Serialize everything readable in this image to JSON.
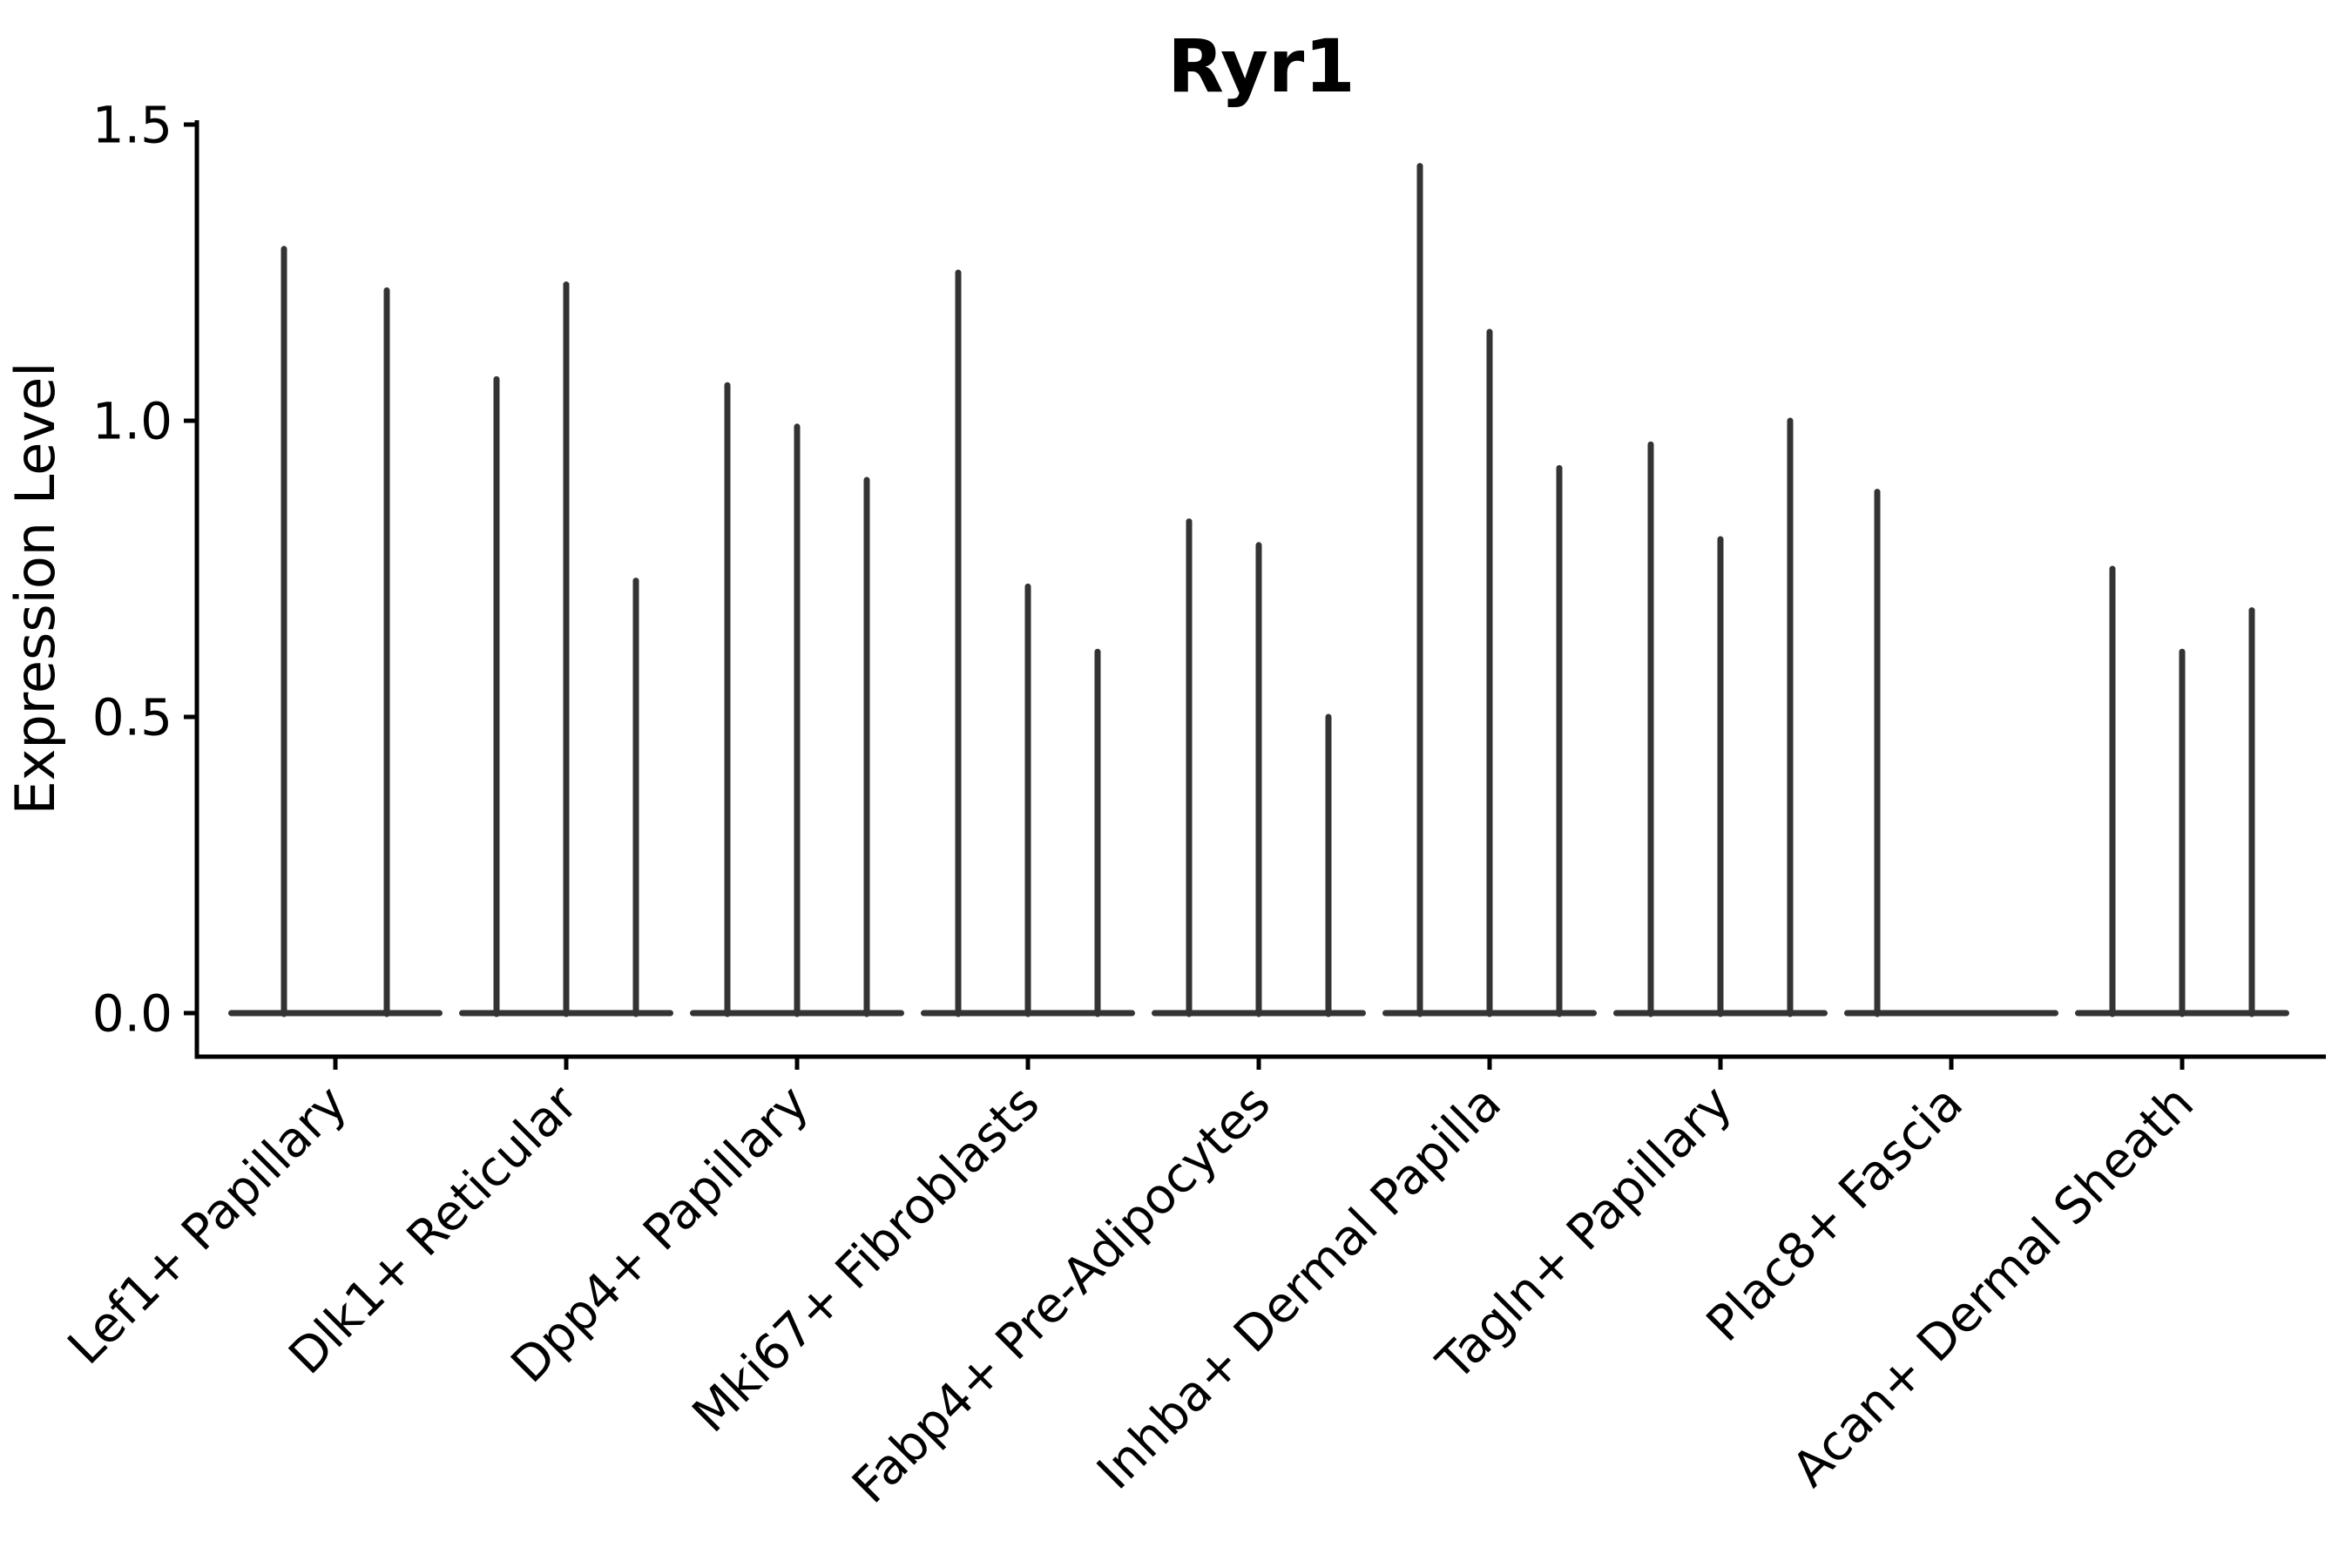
{
  "title": "Ryr1",
  "colors": {
    "violin": "#333333",
    "axis": "#000000",
    "text": "#000000",
    "background": "#ffffff"
  },
  "chart_data": {
    "type": "violin",
    "title": "Ryr1",
    "xlabel": "",
    "ylabel": "Expression Level",
    "ylim": [
      0,
      1.5
    ],
    "yticks": [
      0.0,
      0.5,
      1.0,
      1.5
    ],
    "ytick_labels": [
      "0.0",
      "0.5",
      "1.0",
      "1.5"
    ],
    "grid": false,
    "legend": "none",
    "xtick_rotation_deg": 45,
    "description": "Needle-thin violin plot of Ryr1 expression; each cell-type category holds 2-3 sparse violins (wide flat base at 0 with a thin spike to the max expression value).",
    "categories": [
      "Lef1+ Papillary",
      "Dlk1+ Reticular",
      "Dpp4+ Papillary",
      "Mki67+ Fibroblasts",
      "Fabp4+ Pre-Adipocytes",
      "Inhba+ Dermal Papilla",
      "Tagln+ Papillary",
      "Plac8+ Fascia",
      "Acan+ Dermal Sheath"
    ],
    "groups": [
      {
        "category": "Lef1+ Papillary",
        "violins": [
          {
            "offset": -59,
            "max": 1.29
          },
          {
            "offset": 59,
            "max": 1.22
          }
        ]
      },
      {
        "category": "Dlk1+ Reticular",
        "violins": [
          {
            "offset": -80,
            "max": 1.07
          },
          {
            "offset": 0,
            "max": 1.23
          },
          {
            "offset": 80,
            "max": 0.73
          }
        ]
      },
      {
        "category": "Dpp4+ Papillary",
        "violins": [
          {
            "offset": -80,
            "max": 1.06
          },
          {
            "offset": 0,
            "max": 0.99
          },
          {
            "offset": 80,
            "max": 0.9
          }
        ]
      },
      {
        "category": "Mki67+ Fibroblasts",
        "violins": [
          {
            "offset": -80,
            "max": 1.25
          },
          {
            "offset": 0,
            "max": 0.72
          },
          {
            "offset": 80,
            "max": 0.61
          }
        ]
      },
      {
        "category": "Fabp4+ Pre-Adipocytes",
        "violins": [
          {
            "offset": -80,
            "max": 0.83
          },
          {
            "offset": 0,
            "max": 0.79
          },
          {
            "offset": 80,
            "max": 0.5
          }
        ]
      },
      {
        "category": "Inhba+ Dermal Papilla",
        "violins": [
          {
            "offset": -80,
            "max": 1.43
          },
          {
            "offset": 0,
            "max": 1.15
          },
          {
            "offset": 80,
            "max": 0.92
          }
        ]
      },
      {
        "category": "Tagln+ Papillary",
        "violins": [
          {
            "offset": -80,
            "max": 0.96
          },
          {
            "offset": 0,
            "max": 0.8
          },
          {
            "offset": 80,
            "max": 1.0
          }
        ]
      },
      {
        "category": "Plac8+ Fascia",
        "violins": [
          {
            "offset": -85,
            "max": 0.88
          },
          {
            "offset": 0,
            "max": 0.0
          },
          {
            "offset": 80,
            "max": 0.0
          }
        ]
      },
      {
        "category": "Acan+ Dermal Sheath",
        "violins": [
          {
            "offset": -80,
            "max": 0.75
          },
          {
            "offset": 0,
            "max": 0.61
          },
          {
            "offset": 80,
            "max": 0.68
          }
        ]
      }
    ]
  }
}
